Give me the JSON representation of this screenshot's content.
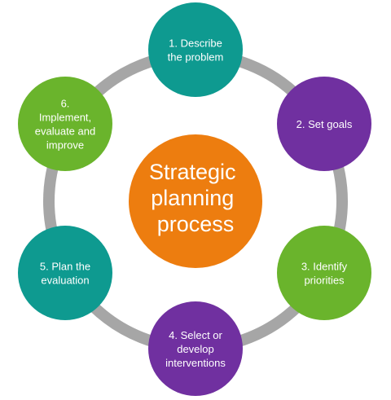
{
  "diagram": {
    "center": {
      "lines": [
        "Strategic",
        "planning",
        "process"
      ],
      "color": "#ED7D0F"
    },
    "ring_color": "#A6A6A6",
    "steps": [
      {
        "lines": [
          "1. Describe",
          "the problem"
        ],
        "color": "#0E9A90"
      },
      {
        "lines": [
          "2. Set goals"
        ],
        "color": "#7030A0"
      },
      {
        "lines": [
          "3. Identify",
          "priorities"
        ],
        "color": "#6AB42C"
      },
      {
        "lines": [
          "4. Select or",
          "develop",
          "interventions"
        ],
        "color": "#7030A0"
      },
      {
        "lines": [
          "5. Plan the",
          "evaluation"
        ],
        "color": "#0E9A90"
      },
      {
        "lines": [
          "6.",
          "Implement,",
          "evaluate and",
          "improve"
        ],
        "color": "#6AB42C"
      }
    ]
  }
}
